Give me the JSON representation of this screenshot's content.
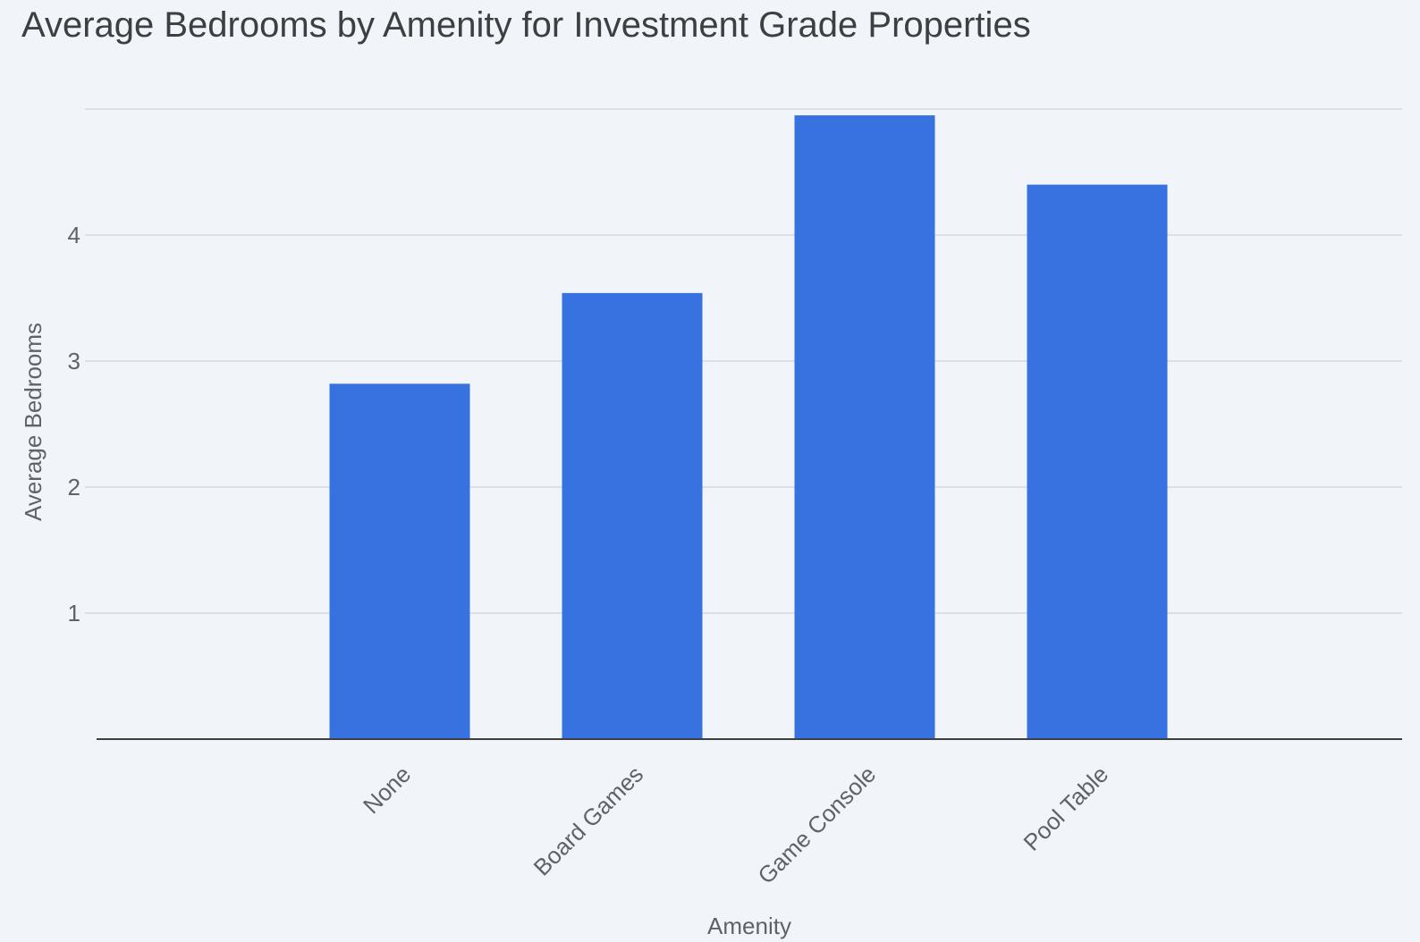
{
  "chart_data": {
    "type": "bar",
    "title": "Average Bedrooms by Amenity for Investment Grade Properties",
    "xlabel": "Amenity",
    "ylabel": "Average Bedrooms",
    "categories": [
      "None",
      "Board Games",
      "Game Console",
      "Pool Table"
    ],
    "values": [
      2.82,
      3.54,
      4.95,
      4.4
    ],
    "ylim": [
      0,
      5
    ],
    "yticks": [
      1,
      2,
      3,
      4
    ],
    "grid": true,
    "legend": "none",
    "colors": {
      "bar": "#3871e0",
      "background": "#f1f4f9"
    }
  }
}
